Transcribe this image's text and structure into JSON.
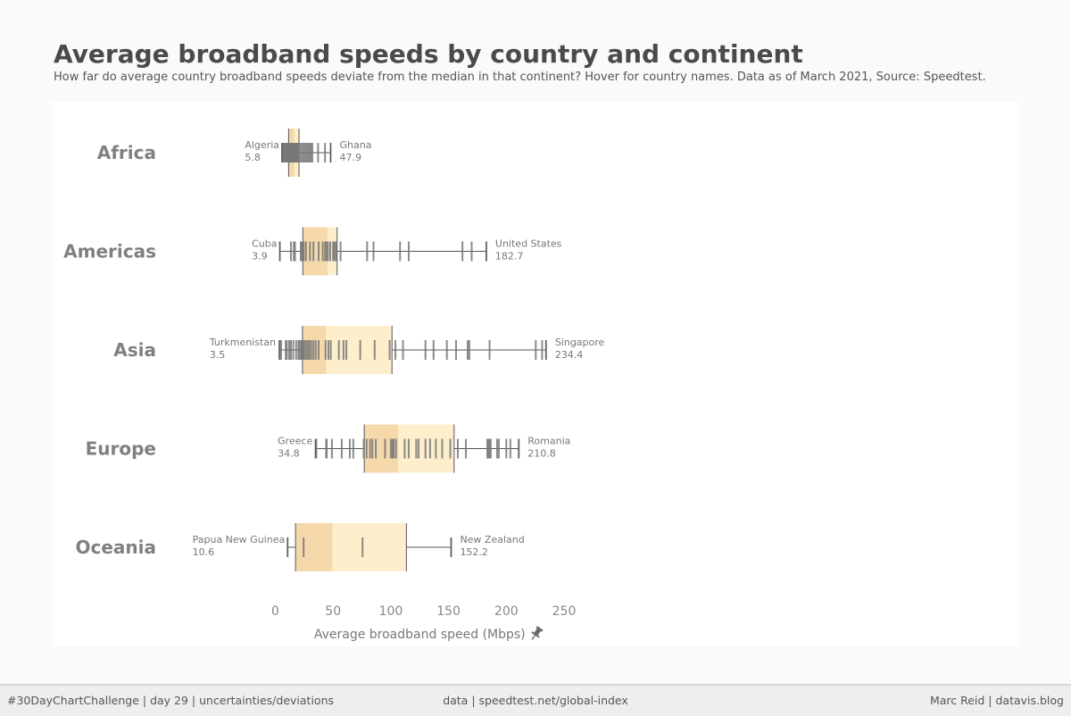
{
  "header": {
    "title": "Average broadband speeds by country and continent",
    "subtitle": "How far do average country broadband speeds deviate from the median in that continent?  Hover for country names.  Data as of March 2021, Source: Speedtest."
  },
  "footer": {
    "left": "#30DayChartChallenge | day 29 | uncertainties/deviations",
    "center": "data | speedtest.net/global-index",
    "right": "Marc Reid | datavis.blog"
  },
  "colors": {
    "box_lower": "#f5d9ab",
    "box_upper": "#fdefcb",
    "tick": "#777777",
    "whisker": "#555555",
    "label": "#777777",
    "continent": "#808080"
  },
  "chart_data": {
    "type": "boxplot",
    "title": "Average broadband speeds by country and continent",
    "xlabel": "Average broadband speed (Mbps)",
    "xlabel_icon": "pin-icon",
    "xlim": [
      0,
      250
    ],
    "xticks": [
      0,
      50,
      100,
      150,
      200,
      250
    ],
    "series": [
      {
        "name": "Africa",
        "q1": 11.5,
        "median": 16.5,
        "q3": 20.5,
        "min": {
          "country": "Algeria",
          "value": 5.8
        },
        "max": {
          "country": "Ghana",
          "value": 47.9
        },
        "values": [
          5.8,
          6.5,
          7.2,
          7.8,
          8.4,
          9.0,
          9.6,
          10.2,
          10.8,
          11.4,
          12.0,
          12.6,
          13.2,
          13.8,
          14.4,
          15.0,
          15.6,
          16.2,
          16.8,
          17.4,
          18.0,
          18.6,
          19.2,
          20.0,
          21.0,
          22.5,
          24.0,
          25.5,
          27.0,
          28.5,
          29.5,
          31.0,
          32.0,
          37.0,
          43.0,
          47.9
        ]
      },
      {
        "name": "Americas",
        "q1": 23.8,
        "median": 45.3,
        "q3": 53.5,
        "min": {
          "country": "Cuba",
          "value": 3.9
        },
        "max": {
          "country": "United States",
          "value": 182.7
        },
        "values": [
          3.9,
          13.5,
          16.0,
          17.0,
          22.0,
          22.8,
          24.5,
          26.5,
          30.0,
          33.0,
          37.5,
          41.0,
          43.0,
          44.5,
          45.5,
          47.5,
          50.0,
          51.0,
          52.5,
          56.5,
          79.5,
          85.0,
          108.0,
          115.5,
          162.0,
          170.0,
          182.7
        ]
      },
      {
        "name": "Asia",
        "q1": 23.5,
        "median": 44.0,
        "q3": 101.0,
        "min": {
          "country": "Turkmenistan",
          "value": 3.5
        },
        "max": {
          "country": "Singapore",
          "value": 234.4
        },
        "values": [
          3.5,
          5.0,
          9.0,
          10.0,
          12.0,
          13.5,
          15.5,
          18.0,
          20.0,
          21.0,
          22.5,
          23.0,
          24.0,
          25.0,
          26.5,
          28.0,
          29.5,
          31.0,
          33.0,
          35.0,
          37.5,
          43.5,
          46.0,
          48.0,
          55.0,
          59.0,
          61.5,
          73.5,
          86.0,
          99.0,
          104.0,
          110.5,
          130.0,
          137.0,
          148.5,
          156.5,
          166.5,
          168.0,
          185.5,
          225.5,
          231.0,
          234.4
        ]
      },
      {
        "name": "Europe",
        "q1": 77.0,
        "median": 106.5,
        "q3": 154.8,
        "min": {
          "country": "Greece",
          "value": 34.8
        },
        "max": {
          "country": "Romania",
          "value": 210.8
        },
        "values": [
          34.8,
          35.5,
          44.0,
          44.5,
          49.0,
          57.5,
          64.5,
          67.5,
          76.5,
          79.0,
          82.0,
          84.0,
          87.0,
          95.0,
          100.0,
          101.5,
          102.5,
          104.5,
          112.0,
          115.5,
          122.0,
          124.0,
          130.0,
          134.0,
          139.0,
          144.5,
          151.5,
          158.0,
          165.0,
          183.5,
          184.5,
          185.5,
          186.5,
          192.0,
          193.5,
          200.0,
          203.5,
          210.8
        ]
      },
      {
        "name": "Oceania",
        "q1": 17.5,
        "median": 49.5,
        "q3": 113.5,
        "min": {
          "country": "Papua New Guinea",
          "value": 10.6
        },
        "max": {
          "country": "New Zealand",
          "value": 152.2
        },
        "values": [
          10.6,
          24.5,
          75.5,
          152.2
        ]
      }
    ]
  }
}
